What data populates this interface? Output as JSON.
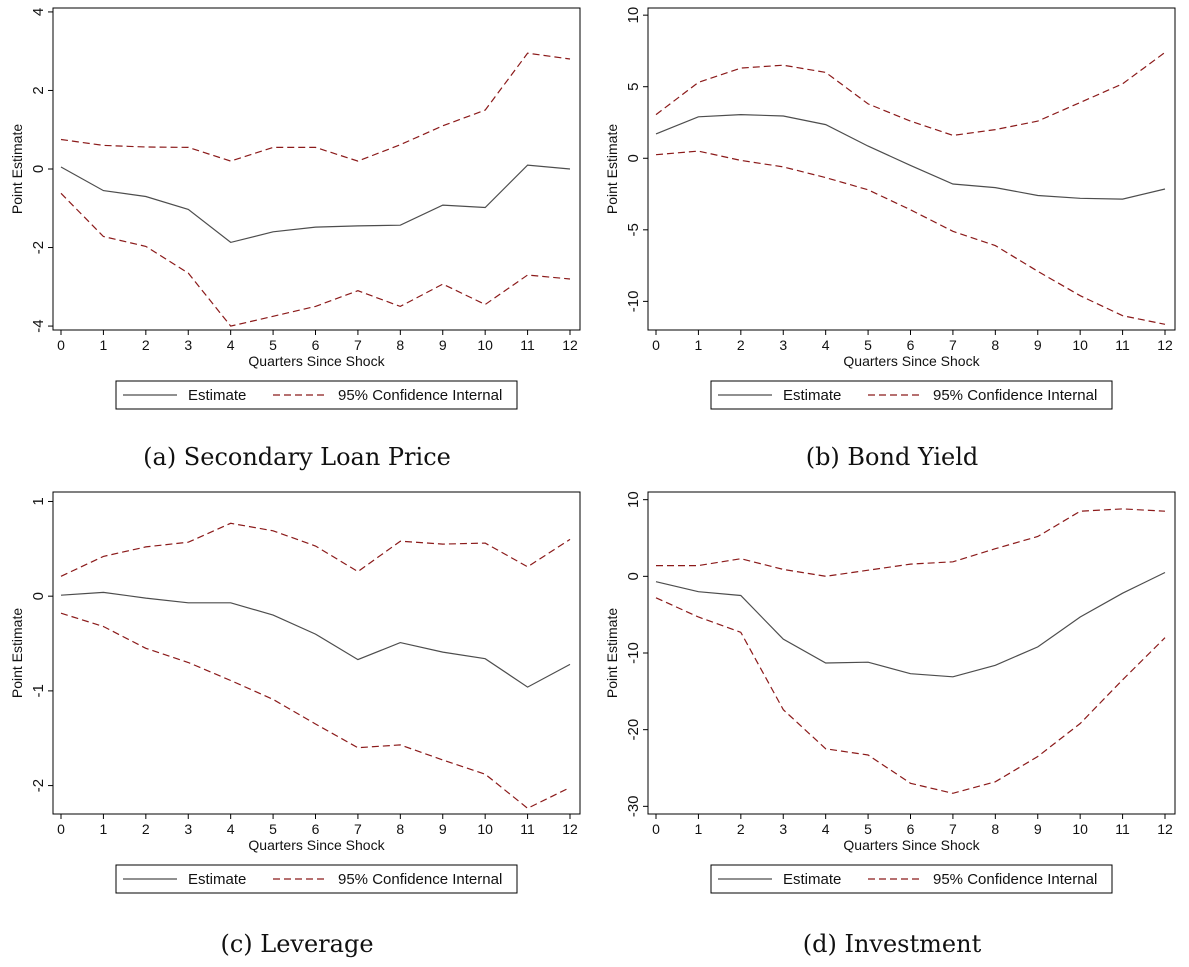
{
  "colors": {
    "estimate": "#4d4d4d",
    "confidence": "#8b1a1a",
    "axis": "#000000"
  },
  "chart_data": [
    {
      "type": "line",
      "caption": "(a) Secondary Loan Price",
      "xlabel": "Quarters Since Shock",
      "ylabel": "Point Estimate",
      "x": [
        0,
        1,
        2,
        3,
        4,
        5,
        6,
        7,
        8,
        9,
        10,
        11,
        12
      ],
      "xlim": [
        0,
        12
      ],
      "ylim": [
        -4.1,
        4.1
      ],
      "yticks": [
        -4,
        -2,
        0,
        2,
        4
      ],
      "grid": false,
      "legend_position": "bottom",
      "series": [
        {
          "name": "Estimate",
          "style": "solid",
          "values": [
            0.05,
            -0.55,
            -0.7,
            -1.03,
            -1.87,
            -1.6,
            -1.48,
            -1.45,
            -1.43,
            -0.92,
            -0.98,
            0.1,
            0.0
          ]
        },
        {
          "name": "95% Confidence Internal",
          "style": "dashed",
          "values": [
            0.75,
            0.6,
            0.56,
            0.55,
            0.2,
            0.55,
            0.55,
            0.2,
            0.62,
            1.1,
            1.5,
            2.95,
            2.8
          ]
        },
        {
          "name": "",
          "style": "dashed",
          "values": [
            -0.62,
            -1.72,
            -1.97,
            -2.65,
            -4.0,
            -3.75,
            -3.5,
            -3.1,
            -3.5,
            -2.93,
            -3.45,
            -2.7,
            -2.8
          ]
        }
      ]
    },
    {
      "type": "line",
      "caption": "(b) Bond Yield",
      "xlabel": "Quarters Since Shock",
      "ylabel": "Point Estimate",
      "x": [
        0,
        1,
        2,
        3,
        4,
        5,
        6,
        7,
        8,
        9,
        10,
        11,
        12
      ],
      "xlim": [
        0,
        12
      ],
      "ylim": [
        -12,
        10.5
      ],
      "yticks": [
        -10,
        -5,
        0,
        5,
        10
      ],
      "grid": false,
      "legend_position": "bottom",
      "series": [
        {
          "name": "Estimate",
          "style": "solid",
          "values": [
            1.7,
            2.9,
            3.05,
            2.95,
            2.35,
            0.85,
            -0.5,
            -1.8,
            -2.05,
            -2.6,
            -2.8,
            -2.85,
            -2.15
          ]
        },
        {
          "name": "95% Confidence Internal",
          "style": "dashed",
          "values": [
            3.05,
            5.3,
            6.3,
            6.5,
            6.0,
            3.8,
            2.6,
            1.6,
            2.0,
            2.6,
            3.9,
            5.2,
            7.4
          ]
        },
        {
          "name": "",
          "style": "dashed",
          "values": [
            0.25,
            0.5,
            -0.15,
            -0.6,
            -1.35,
            -2.2,
            -3.6,
            -5.1,
            -6.1,
            -7.9,
            -9.6,
            -11.0,
            -11.6
          ]
        }
      ]
    },
    {
      "type": "line",
      "caption": "(c) Leverage",
      "xlabel": "Quarters Since Shock",
      "ylabel": "Point Estimate",
      "x": [
        0,
        1,
        2,
        3,
        4,
        5,
        6,
        7,
        8,
        9,
        10,
        11,
        12
      ],
      "xlim": [
        0,
        12
      ],
      "ylim": [
        -2.3,
        1.1
      ],
      "yticks": [
        -2,
        -1,
        0,
        1
      ],
      "grid": false,
      "legend_position": "bottom",
      "series": [
        {
          "name": "Estimate",
          "style": "solid",
          "values": [
            0.01,
            0.04,
            -0.02,
            -0.07,
            -0.07,
            -0.2,
            -0.4,
            -0.67,
            -0.49,
            -0.59,
            -0.66,
            -0.96,
            -0.72
          ]
        },
        {
          "name": "95% Confidence Internal",
          "style": "dashed",
          "values": [
            0.21,
            0.42,
            0.52,
            0.57,
            0.77,
            0.69,
            0.53,
            0.26,
            0.58,
            0.55,
            0.56,
            0.31,
            0.6
          ]
        },
        {
          "name": "",
          "style": "dashed",
          "values": [
            -0.18,
            -0.32,
            -0.55,
            -0.7,
            -0.89,
            -1.09,
            -1.35,
            -1.6,
            -1.57,
            -1.73,
            -1.88,
            -2.24,
            -2.02
          ]
        }
      ]
    },
    {
      "type": "line",
      "caption": "(d) Investment",
      "xlabel": "Quarters Since Shock",
      "ylabel": "Point Estimate",
      "x": [
        0,
        1,
        2,
        3,
        4,
        5,
        6,
        7,
        8,
        9,
        10,
        11,
        12
      ],
      "xlim": [
        0,
        12
      ],
      "ylim": [
        -31,
        11
      ],
      "yticks": [
        -30,
        -20,
        -10,
        0,
        10
      ],
      "grid": false,
      "legend_position": "bottom",
      "series": [
        {
          "name": "Estimate",
          "style": "solid",
          "values": [
            -0.7,
            -2.0,
            -2.5,
            -8.2,
            -11.3,
            -11.2,
            -12.7,
            -13.1,
            -11.6,
            -9.2,
            -5.3,
            -2.2,
            0.5
          ]
        },
        {
          "name": "95% Confidence Internal",
          "style": "dashed",
          "values": [
            1.4,
            1.4,
            2.3,
            0.9,
            0.0,
            0.8,
            1.6,
            1.9,
            3.6,
            5.2,
            8.5,
            8.8,
            8.5
          ]
        },
        {
          "name": "",
          "style": "dashed",
          "values": [
            -2.8,
            -5.3,
            -7.3,
            -17.4,
            -22.5,
            -23.3,
            -27.0,
            -28.3,
            -26.8,
            -23.5,
            -19.2,
            -13.5,
            -8.0
          ]
        }
      ]
    }
  ]
}
